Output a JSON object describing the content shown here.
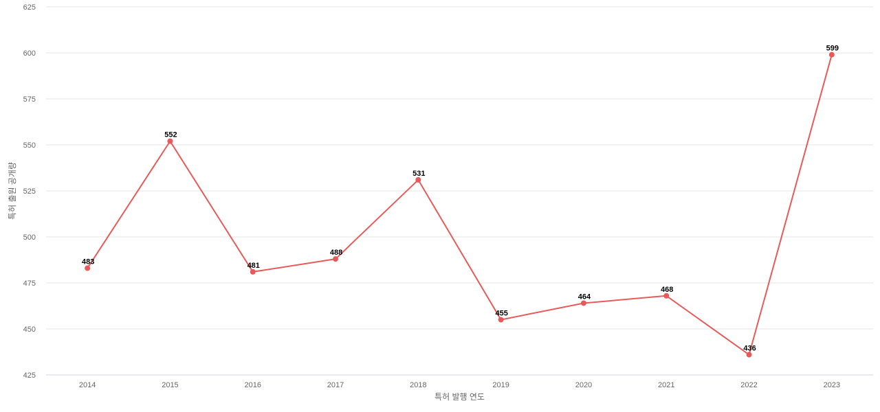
{
  "chart_data": {
    "type": "line",
    "title": "",
    "xlabel": "특허 발행 연도",
    "ylabel": "특허 출원 공개량",
    "categories": [
      "2014",
      "2015",
      "2016",
      "2017",
      "2018",
      "2019",
      "2020",
      "2021",
      "2022",
      "2023"
    ],
    "series": [
      {
        "values": [
          483,
          552,
          481,
          488,
          531,
          455,
          464,
          468,
          436,
          599
        ],
        "color": "#e85a5a"
      }
    ],
    "ylim": [
      425,
      625
    ],
    "yticks": [
      425,
      450,
      475,
      500,
      525,
      550,
      575,
      600,
      625
    ],
    "grid": true,
    "legend": "none",
    "data_labels": true
  }
}
